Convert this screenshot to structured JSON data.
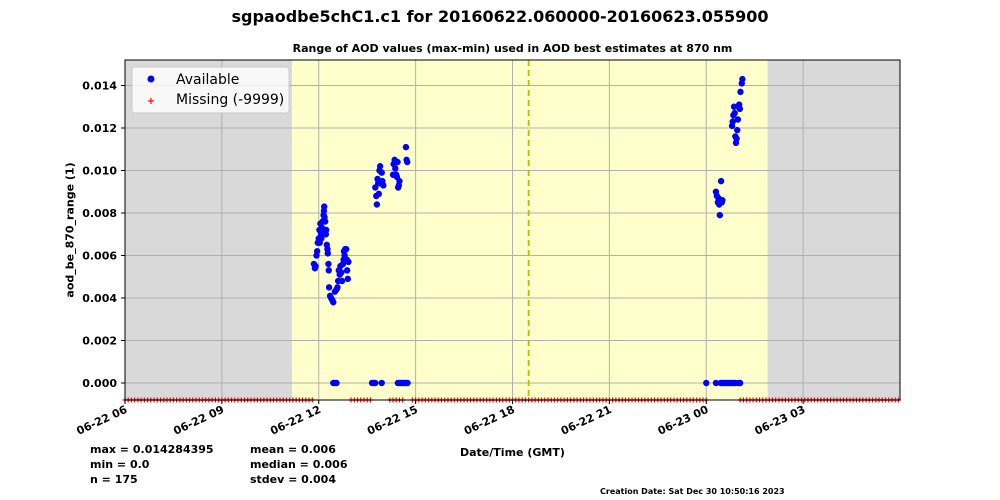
{
  "title": "sgpaodbe5chC1.c1 for 20160622.060000-20160623.055900",
  "stats": {
    "max": "max = 0.014284395",
    "min": "min = 0.0",
    "n": "n = 175",
    "mean": "mean = 0.006",
    "median": "median = 0.006",
    "stdev": "stdev = 0.004"
  },
  "creation_date": "Creation Date: Sat Dec 30 10:50:16 2023",
  "colors": {
    "available": "#0000ff",
    "missing": "#ff0000",
    "night": "#d9d9d9",
    "day": "#ffffcc",
    "noon_line": "#bbbb00",
    "grid": "#b0b0b0"
  },
  "chart_data": {
    "type": "scatter",
    "title": "Range of AOD values (max-min) used in AOD best estimates at 870 nm",
    "xlabel": "Date/Time (GMT)",
    "ylabel": "aod_be_870_range (1)",
    "x_unit": "hours since 2016-06-22 06:00 GMT",
    "xlim": [
      0,
      24
    ],
    "ylim": [
      -0.0008,
      0.0152
    ],
    "grid": true,
    "legend_position": "top-left",
    "legend": [
      "Available",
      "Missing (-9999)"
    ],
    "x_ticks": [
      {
        "value": 0,
        "label": "06-22 06"
      },
      {
        "value": 3,
        "label": "06-22 09"
      },
      {
        "value": 6,
        "label": "06-22 12"
      },
      {
        "value": 9,
        "label": "06-22 15"
      },
      {
        "value": 12,
        "label": "06-22 18"
      },
      {
        "value": 15,
        "label": "06-22 21"
      },
      {
        "value": 18,
        "label": "06-23 00"
      },
      {
        "value": 21,
        "label": "06-23 03"
      }
    ],
    "y_ticks": [
      {
        "value": 0.0,
        "label": "0.000"
      },
      {
        "value": 0.002,
        "label": "0.002"
      },
      {
        "value": 0.004,
        "label": "0.004"
      },
      {
        "value": 0.006,
        "label": "0.006"
      },
      {
        "value": 0.008,
        "label": "0.008"
      },
      {
        "value": 0.01,
        "label": "0.010"
      },
      {
        "value": 0.012,
        "label": "0.012"
      },
      {
        "value": 0.014,
        "label": "0.014"
      }
    ],
    "shading": [
      {
        "type": "night",
        "start": 0,
        "end": 5.17
      },
      {
        "type": "day",
        "start": 5.17,
        "end": 19.9
      },
      {
        "type": "night",
        "start": 19.9,
        "end": 24
      }
    ],
    "solar_noon": 12.5,
    "missing_y": -0.0008,
    "missing_ranges": [
      [
        0,
        5.8
      ],
      [
        7.0,
        7.6
      ],
      [
        8.2,
        8.6
      ],
      [
        8.9,
        18.05
      ],
      [
        19.05,
        24
      ]
    ],
    "missing_step": 0.1,
    "series": [
      {
        "name": "Available",
        "points": [
          [
            5.85,
            0.0056
          ],
          [
            5.88,
            0.0054
          ],
          [
            5.9,
            0.0055
          ],
          [
            5.93,
            0.006
          ],
          [
            5.95,
            0.0062
          ],
          [
            5.97,
            0.0066
          ],
          [
            6.0,
            0.0068
          ],
          [
            6.02,
            0.0072
          ],
          [
            6.03,
            0.0066
          ],
          [
            6.05,
            0.0075
          ],
          [
            6.07,
            0.007
          ],
          [
            6.08,
            0.0068
          ],
          [
            6.1,
            0.0073
          ],
          [
            6.12,
            0.0076
          ],
          [
            6.13,
            0.0072
          ],
          [
            6.15,
            0.0079
          ],
          [
            6.16,
            0.0081
          ],
          [
            6.17,
            0.0083
          ],
          [
            6.18,
            0.0078
          ],
          [
            6.2,
            0.0076
          ],
          [
            6.22,
            0.007
          ],
          [
            6.23,
            0.0072
          ],
          [
            6.25,
            0.0065
          ],
          [
            6.27,
            0.0063
          ],
          [
            6.28,
            0.0061
          ],
          [
            6.3,
            0.0056
          ],
          [
            6.31,
            0.0053
          ],
          [
            6.32,
            0.0045
          ],
          [
            6.35,
            0.0041
          ],
          [
            6.38,
            0.004
          ],
          [
            6.42,
            0.0039
          ],
          [
            6.45,
            0.0038
          ],
          [
            6.5,
            0.0043
          ],
          [
            6.55,
            0.0044
          ],
          [
            6.58,
            0.0045
          ],
          [
            6.6,
            0.0048
          ],
          [
            6.62,
            0.0053
          ],
          [
            6.65,
            0.0051
          ],
          [
            6.67,
            0.0055
          ],
          [
            6.7,
            0.0052
          ],
          [
            6.72,
            0.0048
          ],
          [
            6.75,
            0.0056
          ],
          [
            6.77,
            0.0058
          ],
          [
            6.78,
            0.0062
          ],
          [
            6.8,
            0.006
          ],
          [
            6.82,
            0.0063
          ],
          [
            6.85,
            0.0063
          ],
          [
            6.87,
            0.0058
          ],
          [
            6.88,
            0.0053
          ],
          [
            6.9,
            0.0049
          ],
          [
            6.92,
            0.0057
          ],
          [
            6.45,
            0.0
          ],
          [
            6.5,
            0.0
          ],
          [
            6.55,
            0.0
          ],
          [
            7.75,
            0.0092
          ],
          [
            7.78,
            0.0088
          ],
          [
            7.8,
            0.0084
          ],
          [
            7.82,
            0.0096
          ],
          [
            7.84,
            0.0094
          ],
          [
            7.86,
            0.0089
          ],
          [
            7.88,
            0.01
          ],
          [
            7.9,
            0.0102
          ],
          [
            7.92,
            0.0094
          ],
          [
            7.95,
            0.0099
          ],
          [
            7.97,
            0.0095
          ],
          [
            8.0,
            0.0093
          ],
          [
            7.65,
            0.0
          ],
          [
            7.7,
            0.0
          ],
          [
            7.75,
            0.0
          ],
          [
            7.95,
            0.0
          ],
          [
            8.3,
            0.0098
          ],
          [
            8.32,
            0.0103
          ],
          [
            8.35,
            0.0105
          ],
          [
            8.37,
            0.0101
          ],
          [
            8.4,
            0.0098
          ],
          [
            8.42,
            0.0097
          ],
          [
            8.44,
            0.0104
          ],
          [
            8.46,
            0.0092
          ],
          [
            8.48,
            0.0093
          ],
          [
            8.5,
            0.0095
          ],
          [
            8.7,
            0.0111
          ],
          [
            8.72,
            0.0105
          ],
          [
            8.74,
            0.0104
          ],
          [
            8.45,
            0.0
          ],
          [
            8.5,
            0.0
          ],
          [
            8.55,
            0.0
          ],
          [
            8.6,
            0.0
          ],
          [
            8.65,
            0.0
          ],
          [
            8.7,
            0.0
          ],
          [
            8.75,
            0.0
          ],
          [
            18.0,
            0.0
          ],
          [
            18.3,
            0.0
          ],
          [
            18.45,
            0.0
          ],
          [
            18.5,
            0.0
          ],
          [
            18.55,
            0.0
          ],
          [
            18.6,
            0.0
          ],
          [
            18.65,
            0.0
          ],
          [
            18.7,
            0.0
          ],
          [
            18.75,
            0.0
          ],
          [
            18.8,
            0.0
          ],
          [
            18.85,
            0.0
          ],
          [
            18.9,
            0.0
          ],
          [
            19.0,
            0.0
          ],
          [
            19.05,
            0.0
          ],
          [
            18.3,
            0.009
          ],
          [
            18.33,
            0.0088
          ],
          [
            18.36,
            0.0085
          ],
          [
            18.38,
            0.0087
          ],
          [
            18.4,
            0.0084
          ],
          [
            18.42,
            0.0079
          ],
          [
            18.44,
            0.0086
          ],
          [
            18.46,
            0.0095
          ],
          [
            18.48,
            0.0085
          ],
          [
            18.5,
            0.0086
          ],
          [
            18.8,
            0.0121
          ],
          [
            18.82,
            0.0123
          ],
          [
            18.84,
            0.0126
          ],
          [
            18.86,
            0.013
          ],
          [
            18.88,
            0.0127
          ],
          [
            18.9,
            0.0116
          ],
          [
            18.92,
            0.0113
          ],
          [
            18.94,
            0.0115
          ],
          [
            18.96,
            0.0119
          ],
          [
            18.98,
            0.0124
          ],
          [
            19.0,
            0.013
          ],
          [
            19.02,
            0.0131
          ],
          [
            19.04,
            0.0129
          ],
          [
            19.06,
            0.0137
          ],
          [
            19.1,
            0.0141
          ],
          [
            19.12,
            0.0143
          ]
        ]
      }
    ]
  }
}
